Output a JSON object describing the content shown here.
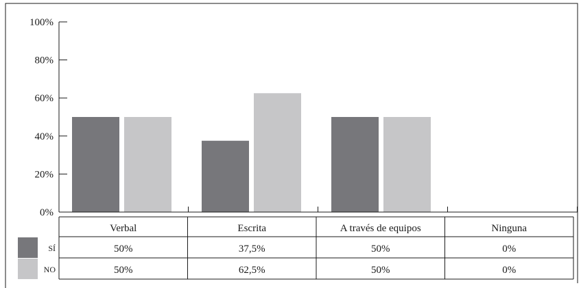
{
  "chart_data": {
    "type": "bar",
    "categories": [
      "Verbal",
      "Escrita",
      "A través de equipos",
      "Ninguna"
    ],
    "series": [
      {
        "name": "SÍ",
        "values": [
          50,
          37.5,
          50,
          0
        ],
        "labels": [
          "50%",
          "37,5%",
          "50%",
          "0%"
        ],
        "color": "#77777b"
      },
      {
        "name": "NO",
        "values": [
          50,
          62.5,
          50,
          0
        ],
        "labels": [
          "50%",
          "62,5%",
          "50%",
          "0%"
        ],
        "color": "#c6c6c8"
      }
    ],
    "y_ticks": [
      "0%",
      "20%",
      "40%",
      "60%",
      "80%",
      "100%"
    ],
    "ylim": [
      0,
      100
    ],
    "grid": false,
    "legend": "data-table-left"
  }
}
